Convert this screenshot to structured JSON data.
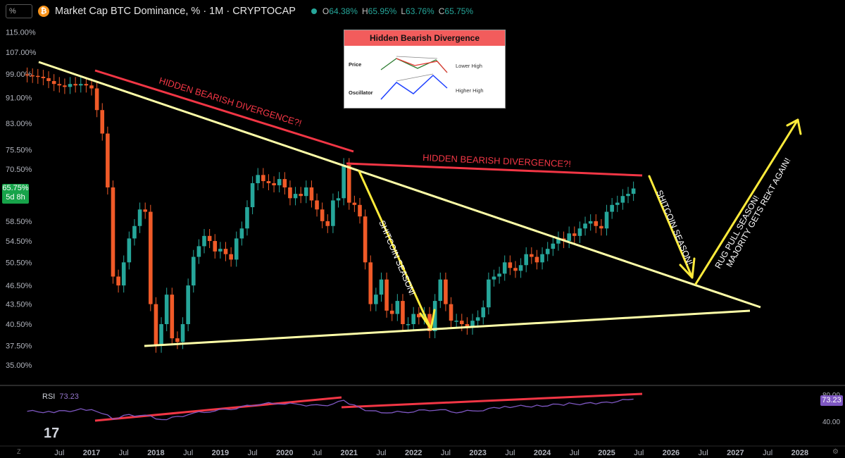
{
  "header": {
    "symbol_box": "%",
    "btc_glyph": "₿",
    "title": "Market Cap BTC Dominance, % · 1M · CRYPTOCAP",
    "ohlc": {
      "o_label": "O",
      "o_value": "64.38%",
      "h_label": "H",
      "h_value": "65.95%",
      "l_label": "L",
      "l_value": "63.76%",
      "c_label": "C",
      "c_value": "65.75%"
    }
  },
  "price_tag": {
    "value": "65.75%",
    "countdown": "5d 8h"
  },
  "rsi": {
    "label": "RSI",
    "value": "73.23",
    "tag": "73.23",
    "axis": [
      {
        "label": "80.00",
        "v": 80
      },
      {
        "label": "40.00",
        "v": 40
      }
    ]
  },
  "inset": {
    "title": "Hidden Bearish Divergence",
    "price_label": "Price",
    "osc_label": "Oscillator",
    "lower_high": "Lower High",
    "higher_high": "Higher High"
  },
  "annotations": {
    "hbd1": "HIDDEN BEARISH DIVERGENCE?!",
    "hbd2": "HIDDEN BEARISH DIVERGENCE?!",
    "alt1": "SHITCOIN SEASON!",
    "alt2": "SHITCOIN SEASON!",
    "rug1": "RUG PULL SEASON!",
    "rug2": "MAJORITY GETS REKT AGAIN!"
  },
  "colors": {
    "up": "#26a69a",
    "down": "#f05a28",
    "trend": "#ffff99",
    "red": "#f23645",
    "yellow": "#ffeb3b",
    "rsi": "#7e57c2",
    "tag_green": "#17a34a"
  },
  "bottom": {
    "z": "Z",
    "logo": "17"
  },
  "chart_data": {
    "type": "candlestick",
    "title": "Market Cap BTC Dominance, % · 1M · CRYPTOCAP",
    "y_scale": "log",
    "y_ticks": [
      "115.00%",
      "107.00%",
      "99.00%",
      "91.00%",
      "83.00%",
      "75.50%",
      "70.50%",
      "65.75%",
      "58.50%",
      "54.50%",
      "50.50%",
      "46.50%",
      "43.50%",
      "40.50%",
      "37.50%",
      "35.00%"
    ],
    "x_ticks": [
      "Jul",
      "2017",
      "Jul",
      "2018",
      "Jul",
      "2019",
      "Jul",
      "2020",
      "Jul",
      "2021",
      "Jul",
      "2022",
      "Jul",
      "2023",
      "Jul",
      "2024",
      "Jul",
      "2025",
      "Jul",
      "2026",
      "Jul",
      "2027",
      "Jul",
      "2028"
    ],
    "series": [
      {
        "type": "candlestick",
        "close_path": [
          [
            "2016-01",
            98.5
          ],
          [
            "2016-02",
            98.3
          ],
          [
            "2016-03",
            98.0
          ],
          [
            "2016-04",
            97.5
          ],
          [
            "2016-05",
            96.5
          ],
          [
            "2016-06",
            95.5
          ],
          [
            "2016-07",
            95.0
          ],
          [
            "2016-08",
            94.5
          ],
          [
            "2016-09",
            95.5
          ],
          [
            "2016-10",
            95.0
          ],
          [
            "2016-11",
            95.5
          ],
          [
            "2016-12",
            95.0
          ],
          [
            "2017-01",
            94.0
          ],
          [
            "2017-02",
            87.0
          ],
          [
            "2017-03",
            80.0
          ],
          [
            "2017-04",
            66.0
          ],
          [
            "2017-05",
            48.0
          ],
          [
            "2017-06",
            46.5
          ],
          [
            "2017-07",
            50.5
          ],
          [
            "2017-08",
            55.0
          ],
          [
            "2017-09",
            57.5
          ],
          [
            "2017-10",
            61.0
          ],
          [
            "2017-11",
            60.5
          ],
          [
            "2017-12",
            43.5
          ],
          [
            "2018-01",
            37.5
          ],
          [
            "2018-02",
            40.5
          ],
          [
            "2018-03",
            45.0
          ],
          [
            "2018-04",
            38.5
          ],
          [
            "2018-05",
            38.0
          ],
          [
            "2018-06",
            40.5
          ],
          [
            "2018-07",
            46.5
          ],
          [
            "2018-08",
            51.5
          ],
          [
            "2018-09",
            53.5
          ],
          [
            "2018-10",
            55.5
          ],
          [
            "2018-11",
            54.5
          ],
          [
            "2018-12",
            52.5
          ],
          [
            "2019-01",
            53.0
          ],
          [
            "2019-02",
            52.0
          ],
          [
            "2019-03",
            51.0
          ],
          [
            "2019-04",
            55.0
          ],
          [
            "2019-05",
            57.0
          ],
          [
            "2019-06",
            61.5
          ],
          [
            "2019-07",
            67.0
          ],
          [
            "2019-08",
            69.0
          ],
          [
            "2019-09",
            67.5
          ],
          [
            "2019-10",
            67.0
          ],
          [
            "2019-11",
            66.5
          ],
          [
            "2019-12",
            68.0
          ],
          [
            "2020-01",
            66.0
          ],
          [
            "2020-02",
            63.5
          ],
          [
            "2020-03",
            64.5
          ],
          [
            "2020-04",
            64.0
          ],
          [
            "2020-05",
            66.0
          ],
          [
            "2020-06",
            63.0
          ],
          [
            "2020-07",
            61.0
          ],
          [
            "2020-08",
            58.5
          ],
          [
            "2020-09",
            57.5
          ],
          [
            "2020-10",
            63.0
          ],
          [
            "2020-11",
            63.5
          ],
          [
            "2020-12",
            71.5
          ],
          [
            "2021-01",
            62.5
          ],
          [
            "2021-02",
            62.0
          ],
          [
            "2021-03",
            59.5
          ],
          [
            "2021-04",
            50.5
          ],
          [
            "2021-05",
            43.5
          ],
          [
            "2021-06",
            45.0
          ],
          [
            "2021-07",
            47.5
          ],
          [
            "2021-08",
            42.5
          ],
          [
            "2021-09",
            42.0
          ],
          [
            "2021-10",
            44.0
          ],
          [
            "2021-11",
            40.5
          ],
          [
            "2021-12",
            40.5
          ],
          [
            "2022-01",
            42.0
          ],
          [
            "2022-02",
            41.5
          ],
          [
            "2022-03",
            42.0
          ],
          [
            "2022-04",
            39.5
          ],
          [
            "2022-05",
            44.0
          ],
          [
            "2022-06",
            47.5
          ],
          [
            "2022-07",
            43.5
          ],
          [
            "2022-08",
            41.0
          ],
          [
            "2022-09",
            41.0
          ],
          [
            "2022-10",
            40.5
          ],
          [
            "2022-11",
            40.0
          ],
          [
            "2022-12",
            41.0
          ],
          [
            "2023-01",
            41.5
          ],
          [
            "2023-02",
            43.0
          ],
          [
            "2023-03",
            47.5
          ],
          [
            "2023-04",
            48.0
          ],
          [
            "2023-05",
            48.5
          ],
          [
            "2023-06",
            50.5
          ],
          [
            "2023-07",
            49.5
          ],
          [
            "2023-08",
            49.0
          ],
          [
            "2023-09",
            50.0
          ],
          [
            "2023-10",
            52.0
          ],
          [
            "2023-11",
            51.5
          ],
          [
            "2023-12",
            50.5
          ],
          [
            "2024-01",
            52.0
          ],
          [
            "2024-02",
            53.0
          ],
          [
            "2024-03",
            54.0
          ],
          [
            "2024-04",
            55.0
          ],
          [
            "2024-05",
            54.5
          ],
          [
            "2024-06",
            56.0
          ],
          [
            "2024-07",
            55.5
          ],
          [
            "2024-08",
            57.0
          ],
          [
            "2024-09",
            58.0
          ],
          [
            "2024-10",
            58.5
          ],
          [
            "2024-11",
            57.5
          ],
          [
            "2024-12",
            57.0
          ],
          [
            "2025-01",
            60.5
          ],
          [
            "2025-02",
            62.0
          ],
          [
            "2025-03",
            62.5
          ],
          [
            "2025-04",
            64.0
          ],
          [
            "2025-05",
            64.5
          ],
          [
            "2025-06",
            65.75
          ]
        ]
      },
      {
        "name": "RSI",
        "type": "line",
        "values_note": "RSI (14) oscillator",
        "path": [
          [
            "2016-01",
            55
          ],
          [
            "2016-06",
            54
          ],
          [
            "2016-12",
            58
          ],
          [
            "2017-02",
            56
          ],
          [
            "2017-05",
            44
          ],
          [
            "2017-08",
            50
          ],
          [
            "2017-12",
            47
          ],
          [
            "2018-01",
            42
          ],
          [
            "2018-04",
            45
          ],
          [
            "2018-08",
            52
          ],
          [
            "2018-12",
            56
          ],
          [
            "2019-04",
            60
          ],
          [
            "2019-08",
            66
          ],
          [
            "2019-12",
            67
          ],
          [
            "2020-04",
            65
          ],
          [
            "2020-08",
            63
          ],
          [
            "2020-12",
            70
          ],
          [
            "2021-02",
            63
          ],
          [
            "2021-05",
            55
          ],
          [
            "2021-09",
            53
          ],
          [
            "2022-01",
            55
          ],
          [
            "2022-05",
            58
          ],
          [
            "2022-09",
            54
          ],
          [
            "2023-01",
            56
          ],
          [
            "2023-06",
            62
          ],
          [
            "2023-12",
            63
          ],
          [
            "2024-06",
            66
          ],
          [
            "2024-12",
            67
          ],
          [
            "2025-06",
            73.23
          ]
        ]
      }
    ],
    "ylim": [
      35.0,
      115.0
    ]
  }
}
